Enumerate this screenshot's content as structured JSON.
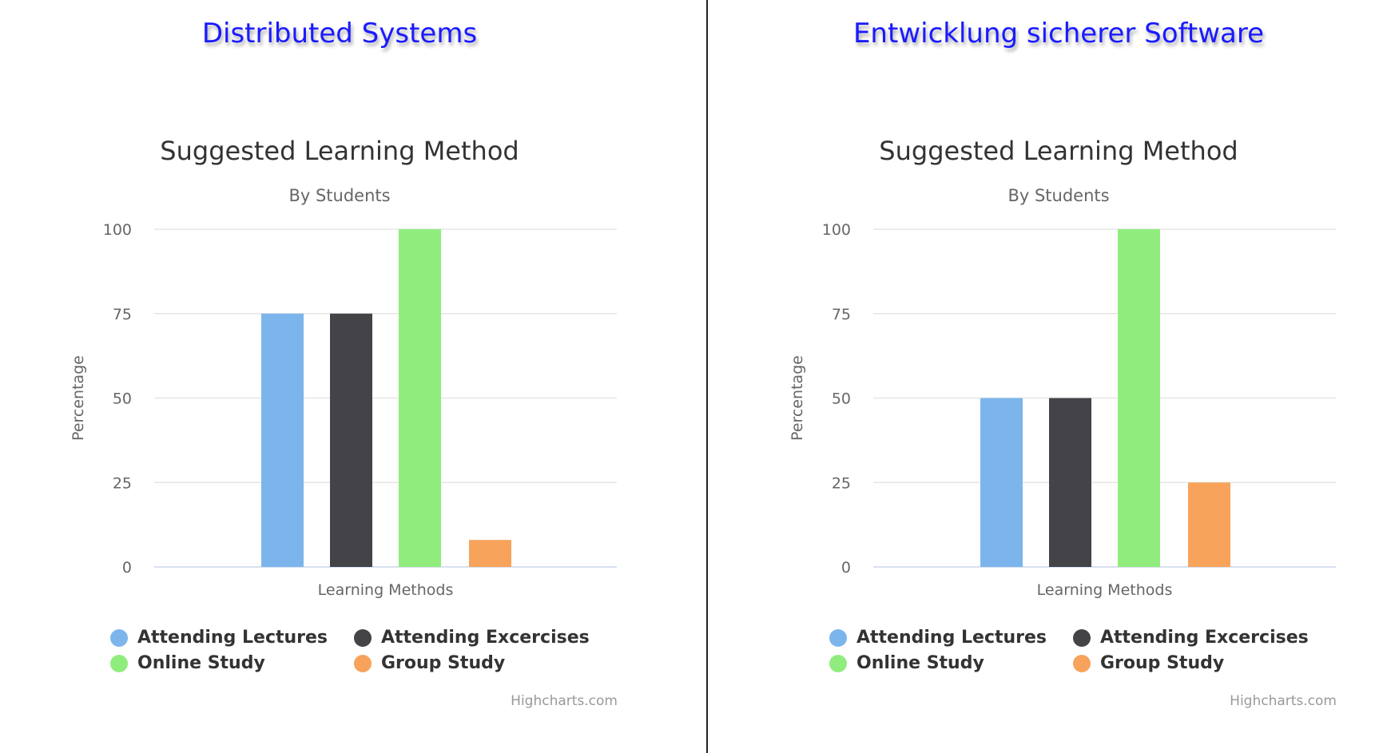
{
  "colors": {
    "course_title": "#1a1aff",
    "series": [
      "#7cb5ec",
      "#434348",
      "#90ed7d",
      "#f7a35c"
    ]
  },
  "legend": {
    "items": [
      {
        "label": "Attending Lectures",
        "color": "#7cb5ec"
      },
      {
        "label": "Attending Excercises",
        "color": "#434348"
      },
      {
        "label": "Online Study",
        "color": "#90ed7d"
      },
      {
        "label": "Group Study",
        "color": "#f7a35c"
      }
    ]
  },
  "credits": "Highcharts.com",
  "chart_data": [
    {
      "course": "Distributed Systems",
      "type": "bar",
      "title": "Suggested Learning Method",
      "subtitle": "By Students",
      "xlabel": "Learning Methods",
      "ylabel": "Percentage",
      "ylim": [
        0,
        100
      ],
      "yticks": [
        0,
        25,
        50,
        75,
        100
      ],
      "grid": true,
      "legend_position": "bottom",
      "series": [
        {
          "name": "Attending Lectures",
          "value": 75
        },
        {
          "name": "Attending Excercises",
          "value": 75
        },
        {
          "name": "Online Study",
          "value": 100
        },
        {
          "name": "Group Study",
          "value": 8
        }
      ]
    },
    {
      "course": "Entwicklung sicherer Software",
      "type": "bar",
      "title": "Suggested Learning Method",
      "subtitle": "By Students",
      "xlabel": "Learning Methods",
      "ylabel": "Percentage",
      "ylim": [
        0,
        100
      ],
      "yticks": [
        0,
        25,
        50,
        75,
        100
      ],
      "grid": true,
      "legend_position": "bottom",
      "series": [
        {
          "name": "Attending Lectures",
          "value": 50
        },
        {
          "name": "Attending Excercises",
          "value": 50
        },
        {
          "name": "Online Study",
          "value": 100
        },
        {
          "name": "Group Study",
          "value": 25
        }
      ]
    }
  ]
}
